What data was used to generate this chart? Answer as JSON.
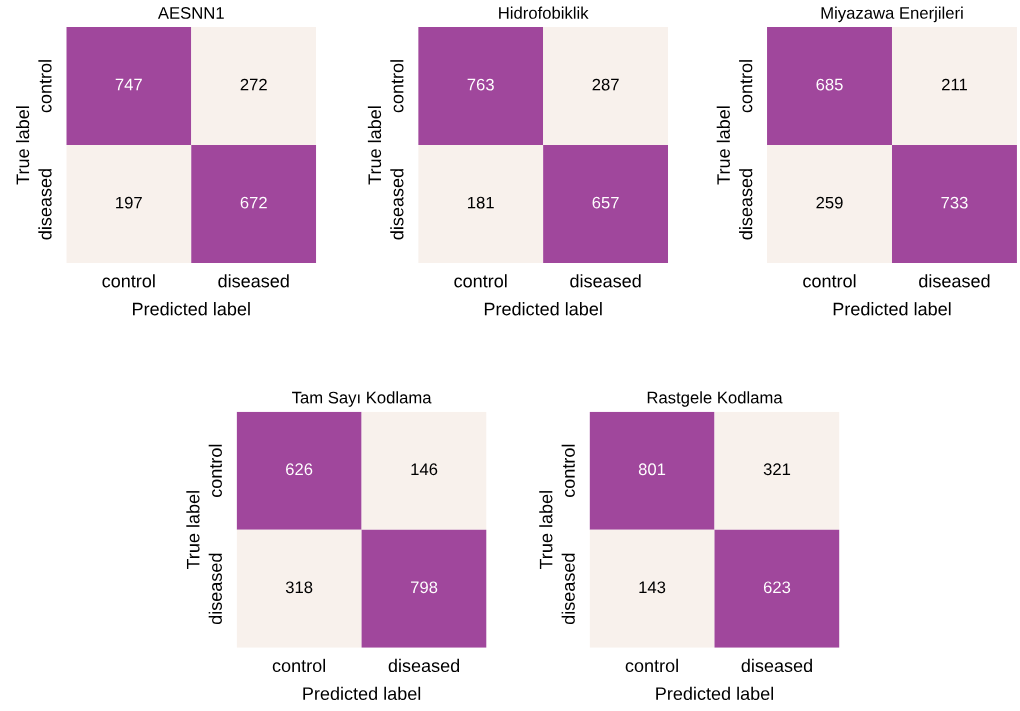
{
  "chart_data": [
    {
      "type": "heatmap",
      "title": "AESNN1",
      "xlabel": "Predicted label",
      "ylabel": "True label",
      "categories": [
        "control",
        "diseased"
      ],
      "y_categories": [
        "control",
        "diseased"
      ],
      "cells": [
        [
          747,
          272
        ],
        [
          197,
          672
        ]
      ],
      "data_labels": true,
      "colors": [
        "#f8f1ec",
        "#a0479c"
      ]
    },
    {
      "type": "heatmap",
      "title": "Hidrofobiklik",
      "xlabel": "Predicted label",
      "ylabel": "True label",
      "categories": [
        "control",
        "diseased"
      ],
      "y_categories": [
        "control",
        "diseased"
      ],
      "cells": [
        [
          763,
          287
        ],
        [
          181,
          657
        ]
      ],
      "data_labels": true,
      "colors": [
        "#f8f1ec",
        "#a0479c"
      ]
    },
    {
      "type": "heatmap",
      "title": "Miyazawa Enerjileri",
      "xlabel": "Predicted label",
      "ylabel": "True label",
      "categories": [
        "control",
        "diseased"
      ],
      "y_categories": [
        "control",
        "diseased"
      ],
      "cells": [
        [
          685,
          211
        ],
        [
          259,
          733
        ]
      ],
      "data_labels": true,
      "colors": [
        "#f8f1ec",
        "#a0479c"
      ]
    },
    {
      "type": "heatmap",
      "title": "Tam Sayı Kodlama",
      "xlabel": "Predicted label",
      "ylabel": "True label",
      "categories": [
        "control",
        "diseased"
      ],
      "y_categories": [
        "control",
        "diseased"
      ],
      "cells": [
        [
          626,
          146
        ],
        [
          318,
          798
        ]
      ],
      "data_labels": true,
      "colors": [
        "#f8f1ec",
        "#a0479c"
      ]
    },
    {
      "type": "heatmap",
      "title": "Rastgele Kodlama",
      "xlabel": "Predicted label",
      "ylabel": "True label",
      "categories": [
        "control",
        "diseased"
      ],
      "y_categories": [
        "control",
        "diseased"
      ],
      "cells": [
        [
          801,
          321
        ],
        [
          143,
          623
        ]
      ],
      "data_labels": true,
      "colors": [
        "#f8f1ec",
        "#a0479c"
      ]
    }
  ]
}
